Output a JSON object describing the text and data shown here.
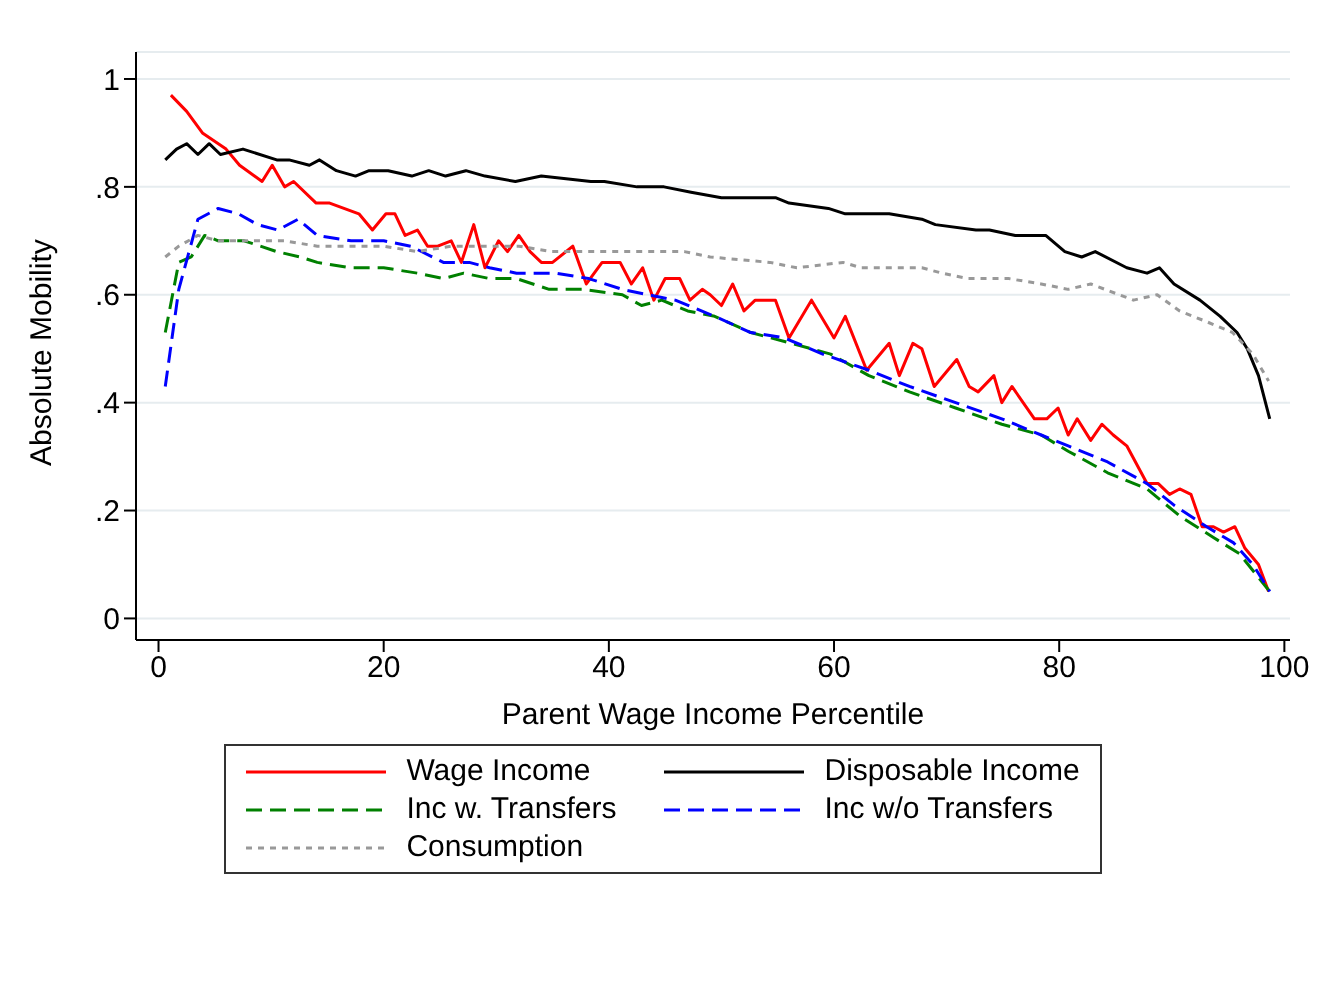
{
  "chart_data": {
    "type": "line",
    "xlabel": "Parent Wage Income Percentile",
    "ylabel": "Absolute Mobility",
    "xlim": [
      -2,
      100.5
    ],
    "ylim": [
      -0.04,
      1.05
    ],
    "xticks": [
      0,
      20,
      40,
      60,
      80,
      100
    ],
    "yticks": [
      {
        "value": 0,
        "label": "0"
      },
      {
        "value": 0.2,
        "label": ".2"
      },
      {
        "value": 0.4,
        "label": ".4"
      },
      {
        "value": 0.6,
        "label": ".6"
      },
      {
        "value": 0.8,
        "label": ".8"
      },
      {
        "value": 1,
        "label": "1"
      }
    ],
    "grid": "y",
    "legend": "bottom",
    "marker": "none",
    "series": [
      {
        "name": "Wage Income",
        "color": "#ff0000",
        "line_style": "solid",
        "x": [
          1.1,
          2.5,
          3.9,
          6,
          7.2,
          9.2,
          10.1,
          11.2,
          12,
          14,
          15.2,
          17.8,
          19,
          20.2,
          21,
          21.9,
          23,
          23.9,
          24.8,
          26,
          26.9,
          28,
          29,
          30.2,
          31,
          32,
          33,
          34,
          35,
          36.8,
          38,
          39.4,
          41,
          42,
          43,
          44,
          45,
          46.3,
          47.2,
          48.3,
          49,
          50,
          51,
          52,
          53,
          54.8,
          56,
          58,
          60,
          61,
          62.9,
          64.9,
          65.8,
          67,
          67.8,
          68.9,
          70.9,
          72,
          72.8,
          74.2,
          74.9,
          75.8,
          77.8,
          78.9,
          79.9,
          80.8,
          81.6,
          82.8,
          83.8,
          84.8,
          86,
          87.8,
          88.8,
          89.8,
          90.7,
          91.7,
          92.7,
          93.7,
          94.6,
          95.6,
          96.5,
          97.7,
          98.6
        ],
        "values": [
          0.97,
          0.94,
          0.9,
          0.87,
          0.84,
          0.81,
          0.84,
          0.8,
          0.81,
          0.77,
          0.77,
          0.75,
          0.72,
          0.75,
          0.75,
          0.71,
          0.72,
          0.69,
          0.69,
          0.7,
          0.66,
          0.73,
          0.65,
          0.7,
          0.68,
          0.71,
          0.68,
          0.66,
          0.66,
          0.69,
          0.62,
          0.66,
          0.66,
          0.62,
          0.65,
          0.59,
          0.63,
          0.63,
          0.59,
          0.61,
          0.6,
          0.58,
          0.62,
          0.57,
          0.59,
          0.59,
          0.52,
          0.59,
          0.52,
          0.56,
          0.46,
          0.51,
          0.45,
          0.51,
          0.5,
          0.43,
          0.48,
          0.43,
          0.42,
          0.45,
          0.4,
          0.43,
          0.37,
          0.37,
          0.39,
          0.34,
          0.37,
          0.33,
          0.36,
          0.34,
          0.32,
          0.25,
          0.25,
          0.23,
          0.24,
          0.23,
          0.17,
          0.17,
          0.16,
          0.17,
          0.13,
          0.1,
          0.05
        ]
      },
      {
        "name": "Disposable Income",
        "color": "#000000",
        "line_style": "solid",
        "x": [
          0.6,
          1.6,
          2.5,
          3.5,
          4.5,
          5.5,
          7.5,
          10.5,
          11.6,
          13.4,
          14.3,
          15.8,
          17.5,
          18.7,
          20.4,
          22.5,
          24,
          25.5,
          27.3,
          29,
          31.7,
          34,
          38.4,
          39.6,
          42.5,
          44.9,
          47.3,
          50,
          54.8,
          56,
          59.5,
          61,
          62.4,
          64.9,
          67.8,
          69,
          72.6,
          73.8,
          76.1,
          78.8,
          80.5,
          82,
          83.2,
          86,
          87.8,
          88.9,
          90.2,
          92.5,
          94.3,
          95.8,
          96.7,
          97.7,
          98.7
        ],
        "values": [
          0.85,
          0.87,
          0.88,
          0.86,
          0.88,
          0.86,
          0.87,
          0.85,
          0.85,
          0.84,
          0.85,
          0.83,
          0.82,
          0.83,
          0.83,
          0.82,
          0.83,
          0.82,
          0.83,
          0.82,
          0.81,
          0.82,
          0.81,
          0.81,
          0.8,
          0.8,
          0.79,
          0.78,
          0.78,
          0.77,
          0.76,
          0.75,
          0.75,
          0.75,
          0.74,
          0.73,
          0.72,
          0.72,
          0.71,
          0.71,
          0.68,
          0.67,
          0.68,
          0.65,
          0.64,
          0.65,
          0.62,
          0.59,
          0.56,
          0.53,
          0.5,
          0.45,
          0.37
        ]
      },
      {
        "name": "Inc w. Transfers",
        "color": "#008000",
        "line_style": "dashed",
        "x": [
          0.6,
          1.8,
          2.9,
          4.1,
          5.3,
          7.6,
          10.5,
          12.6,
          14.1,
          17.1,
          20,
          23,
          25.3,
          27.1,
          29.4,
          31.8,
          34.7,
          37.7,
          41.2,
          42.9,
          44.7,
          47,
          49.4,
          52.6,
          56.2,
          59.7,
          63.1,
          66.7,
          70.8,
          74.9,
          78.4,
          80.8,
          84.3,
          87.8,
          90.7,
          93.7,
          96,
          98.7
        ],
        "values": [
          0.53,
          0.66,
          0.67,
          0.71,
          0.7,
          0.7,
          0.68,
          0.67,
          0.66,
          0.65,
          0.65,
          0.64,
          0.63,
          0.64,
          0.63,
          0.63,
          0.61,
          0.61,
          0.6,
          0.58,
          0.59,
          0.57,
          0.56,
          0.53,
          0.51,
          0.49,
          0.45,
          0.42,
          0.39,
          0.36,
          0.34,
          0.31,
          0.27,
          0.24,
          0.19,
          0.15,
          0.12,
          0.05
        ]
      },
      {
        "name": "Inc w/o Transfers",
        "color": "#0000ff",
        "line_style": "dashed",
        "x": [
          0.6,
          1.8,
          3.5,
          5.3,
          7.1,
          8.8,
          10.6,
          12.4,
          14.1,
          17.1,
          20,
          22.4,
          25.3,
          27.6,
          29.4,
          31.8,
          35.3,
          38.2,
          41.2,
          43.5,
          45.9,
          49.4,
          52.6,
          55.6,
          59,
          63.1,
          66.7,
          70.8,
          74.9,
          78.4,
          80.8,
          84.3,
          87.8,
          90.2,
          93.1,
          95.5,
          97.2,
          98.7
        ],
        "values": [
          0.43,
          0.61,
          0.74,
          0.76,
          0.75,
          0.73,
          0.72,
          0.74,
          0.71,
          0.7,
          0.7,
          0.69,
          0.66,
          0.66,
          0.65,
          0.64,
          0.64,
          0.63,
          0.61,
          0.6,
          0.59,
          0.56,
          0.53,
          0.52,
          0.49,
          0.46,
          0.43,
          0.4,
          0.37,
          0.34,
          0.32,
          0.29,
          0.25,
          0.21,
          0.17,
          0.14,
          0.1,
          0.05
        ]
      },
      {
        "name": "Consumption",
        "color": "#999999",
        "line_style": "dotted",
        "x": [
          0.6,
          1.8,
          3.5,
          5.3,
          8.3,
          11.2,
          14.1,
          17.1,
          20,
          23,
          26,
          29,
          32,
          34.9,
          37.9,
          40.8,
          43.7,
          46.7,
          49,
          54.3,
          56.7,
          60.8,
          62.4,
          67.8,
          69.6,
          71.9,
          75.5,
          78.4,
          80.8,
          82.8,
          86.6,
          88.7,
          90.7,
          93.1,
          95.4,
          97.2,
          98.6
        ],
        "values": [
          0.67,
          0.69,
          0.71,
          0.7,
          0.7,
          0.7,
          0.69,
          0.69,
          0.69,
          0.68,
          0.69,
          0.69,
          0.69,
          0.68,
          0.68,
          0.68,
          0.68,
          0.68,
          0.67,
          0.66,
          0.65,
          0.66,
          0.65,
          0.65,
          0.64,
          0.63,
          0.63,
          0.62,
          0.61,
          0.62,
          0.59,
          0.6,
          0.57,
          0.55,
          0.53,
          0.49,
          0.44
        ]
      }
    ]
  }
}
